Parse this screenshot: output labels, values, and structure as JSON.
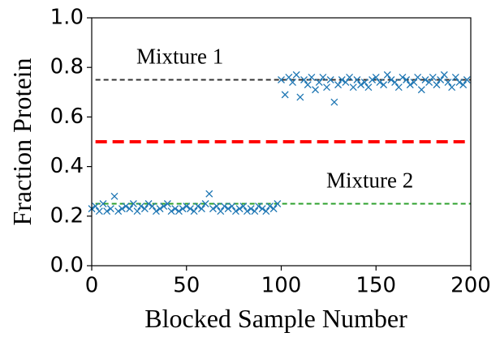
{
  "chart_data": {
    "type": "scatter",
    "xlabel": "Blocked Sample Number",
    "ylabel": "Fraction Protein",
    "xlim": [
      0,
      200
    ],
    "ylim": [
      0,
      1
    ],
    "xticks": [
      0,
      50,
      100,
      150,
      200
    ],
    "yticks": [
      {
        "value": 0,
        "label": "0.0"
      },
      0.2,
      0.4,
      0.6,
      0.8,
      {
        "value": 1,
        "label": "1.0"
      }
    ],
    "series": [
      {
        "color": "#1f77b4",
        "marker": "x",
        "x": [
          0,
          2,
          4,
          6,
          8,
          10,
          12,
          14,
          16,
          18,
          20,
          22,
          24,
          26,
          28,
          30,
          32,
          34,
          36,
          38,
          40,
          42,
          44,
          46,
          48,
          50,
          52,
          54,
          56,
          58,
          60,
          62,
          64,
          66,
          68,
          70,
          72,
          74,
          76,
          78,
          80,
          82,
          84,
          86,
          88,
          90,
          92,
          94,
          96,
          98,
          100,
          102,
          104,
          106,
          108,
          110,
          112,
          114,
          116,
          118,
          120,
          122,
          124,
          126,
          128,
          130,
          132,
          134,
          136,
          138,
          140,
          142,
          144,
          146,
          148,
          150,
          152,
          154,
          156,
          158,
          160,
          162,
          164,
          166,
          168,
          170,
          172,
          174,
          176,
          178,
          180,
          182,
          184,
          186,
          188,
          190,
          192,
          194,
          196,
          198
        ],
        "values": [
          0.23,
          0.24,
          0.22,
          0.25,
          0.22,
          0.23,
          0.28,
          0.22,
          0.23,
          0.24,
          0.23,
          0.25,
          0.22,
          0.24,
          0.23,
          0.25,
          0.24,
          0.22,
          0.23,
          0.24,
          0.25,
          0.22,
          0.23,
          0.22,
          0.23,
          0.24,
          0.23,
          0.22,
          0.24,
          0.23,
          0.25,
          0.29,
          0.23,
          0.24,
          0.22,
          0.24,
          0.23,
          0.24,
          0.22,
          0.23,
          0.24,
          0.22,
          0.23,
          0.22,
          0.24,
          0.23,
          0.22,
          0.24,
          0.23,
          0.25,
          0.75,
          0.69,
          0.76,
          0.74,
          0.77,
          0.68,
          0.75,
          0.73,
          0.76,
          0.71,
          0.74,
          0.76,
          0.72,
          0.75,
          0.66,
          0.73,
          0.75,
          0.74,
          0.76,
          0.72,
          0.75,
          0.73,
          0.74,
          0.72,
          0.75,
          0.76,
          0.74,
          0.73,
          0.77,
          0.75,
          0.74,
          0.72,
          0.76,
          0.75,
          0.73,
          0.74,
          0.76,
          0.71,
          0.75,
          0.74,
          0.76,
          0.73,
          0.75,
          0.77,
          0.74,
          0.72,
          0.76,
          0.74,
          0.73,
          0.75
        ]
      }
    ],
    "hlines": [
      {
        "y": 0.75,
        "xmin": 2,
        "color": "#333333",
        "style": "dashed",
        "width": 2,
        "label": "Mixture 1"
      },
      {
        "y": 0.5,
        "xmin": 2,
        "color": "#ff0000",
        "style": "dashed",
        "width": 4
      },
      {
        "y": 0.25,
        "xmin": 2,
        "color": "#2ca02c",
        "style": "dashed",
        "width": 2,
        "label": "Mixture 2"
      }
    ]
  }
}
